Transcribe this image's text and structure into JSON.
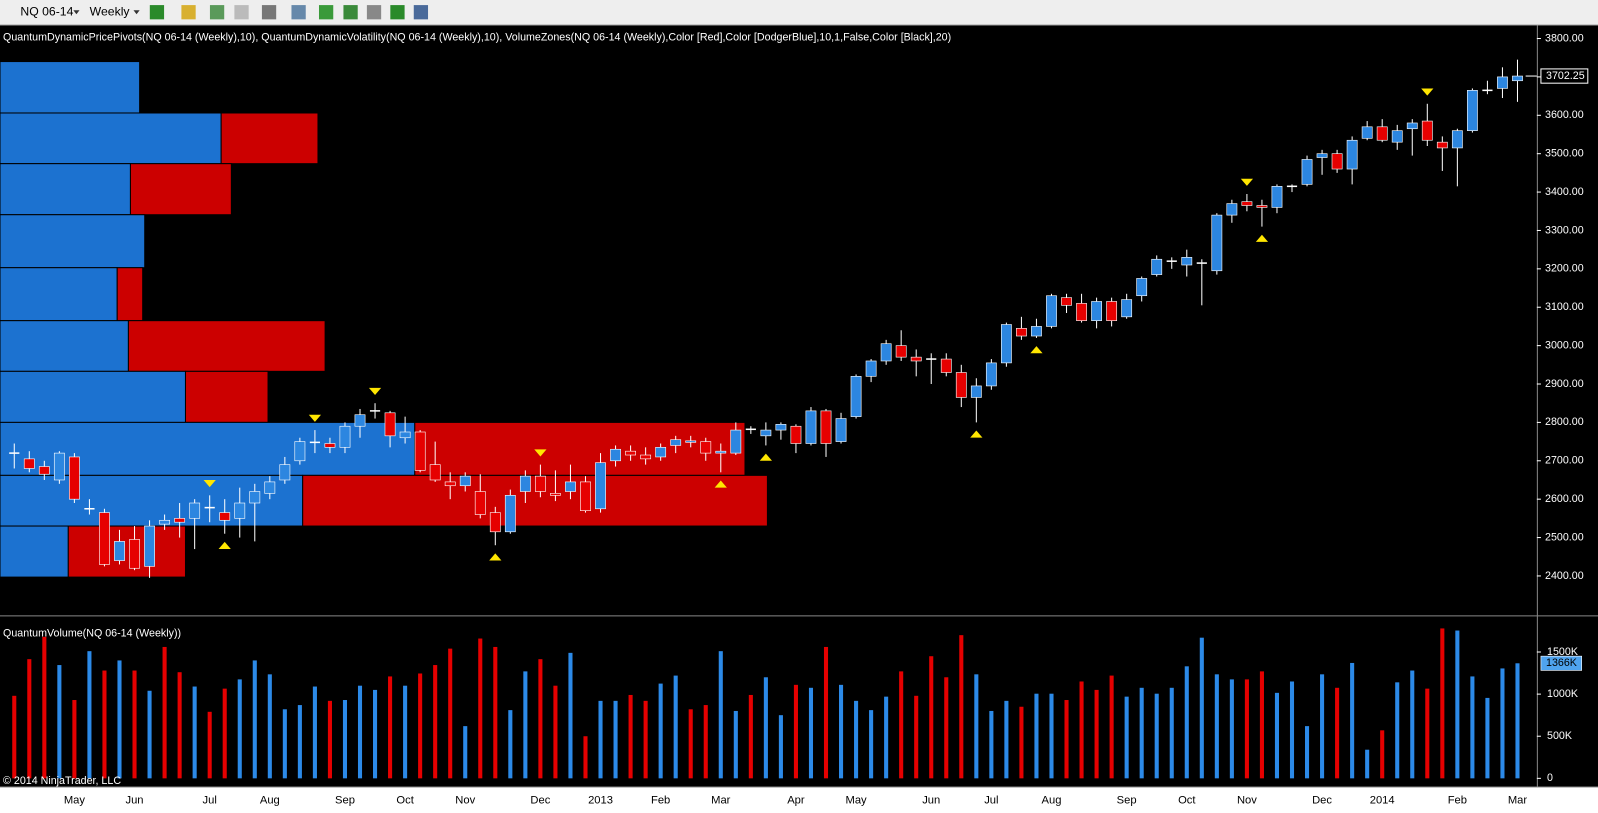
{
  "toolbar": {
    "instrument": "NQ 06-14",
    "interval": "Weekly"
  },
  "copyright": "© 2014 NinjaTrader, LLC",
  "chart_data": [
    {
      "type": "candlestick",
      "title": "QuantumDynamicPricePivots(NQ 06-14 (Weekly),10), QuantumDynamicVolatility(NQ 06-14 (Weekly),10), VolumeZones(NQ 06-14 (Weekly),Color [Red],Color [DodgerBlue],10,1,False,Color [Black],20)",
      "categories": [
        null,
        null,
        null,
        null,
        "May",
        null,
        null,
        null,
        "Jun",
        null,
        null,
        null,
        null,
        "Jul",
        null,
        null,
        null,
        "Aug",
        null,
        null,
        null,
        null,
        "Sep",
        null,
        null,
        null,
        "Oct",
        null,
        null,
        null,
        "Nov",
        null,
        null,
        null,
        null,
        "Dec",
        null,
        null,
        null,
        "2013",
        null,
        null,
        null,
        "Feb",
        null,
        null,
        null,
        "Mar",
        null,
        null,
        null,
        null,
        "Apr",
        null,
        null,
        null,
        "May",
        null,
        null,
        null,
        null,
        "Jun",
        null,
        null,
        null,
        "Jul",
        null,
        null,
        null,
        "Aug",
        null,
        null,
        null,
        null,
        "Sep",
        null,
        null,
        null,
        "Oct",
        null,
        null,
        null,
        "Nov",
        null,
        null,
        null,
        null,
        "Dec",
        null,
        null,
        null,
        "2014",
        null,
        null,
        null,
        null,
        "Feb",
        null,
        null,
        null,
        "Mar"
      ],
      "open": [
        2720,
        2705,
        2685,
        2650,
        2710,
        2575,
        2565,
        2440,
        2495,
        2425,
        2535,
        2550,
        2550,
        2578,
        2565,
        2550,
        2590,
        2615,
        2650,
        2700,
        2748,
        2745,
        2735,
        2790,
        2830,
        2825,
        2760,
        2775,
        2690,
        2645,
        2635,
        2620,
        2565,
        2515,
        2620,
        2660,
        2615,
        2620,
        2645,
        2575,
        2700,
        2725,
        2715,
        2710,
        2740,
        2748,
        2750,
        2720,
        2720,
        2782,
        2765,
        2780,
        2790,
        2745,
        2830,
        2750,
        2815,
        2920,
        2960,
        3000,
        2970,
        2965,
        2965,
        2930,
        2865,
        2895,
        2955,
        3045,
        3025,
        3050,
        3125,
        3110,
        3065,
        3115,
        3075,
        3130,
        3185,
        3220,
        3210,
        3215,
        3195,
        3340,
        3375,
        3365,
        3360,
        3415,
        3420,
        3490,
        3500,
        3460,
        3540,
        3570,
        3530,
        3565,
        3585,
        3530,
        3515,
        3560,
        3665,
        3670,
        3690
      ],
      "high": [
        2745,
        2725,
        2700,
        2725,
        2720,
        2600,
        2575,
        2520,
        2530,
        2545,
        2560,
        2590,
        2600,
        2610,
        2600,
        2630,
        2640,
        2660,
        2710,
        2760,
        2780,
        2760,
        2800,
        2835,
        2850,
        2830,
        2815,
        2780,
        2750,
        2670,
        2670,
        2665,
        2580,
        2625,
        2675,
        2690,
        2675,
        2690,
        2660,
        2720,
        2740,
        2740,
        2735,
        2745,
        2765,
        2765,
        2760,
        2745,
        2800,
        2790,
        2800,
        2800,
        2795,
        2840,
        2835,
        2825,
        2925,
        2965,
        3015,
        3040,
        2990,
        2980,
        2980,
        2950,
        2915,
        2965,
        3060,
        3075,
        3070,
        3135,
        3135,
        3135,
        3125,
        3125,
        3135,
        3180,
        3235,
        3230,
        3250,
        3225,
        3345,
        3380,
        3395,
        3380,
        3420,
        3420,
        3495,
        3510,
        3510,
        3545,
        3585,
        3590,
        3575,
        3590,
        3630,
        3545,
        3565,
        3670,
        3690,
        3725,
        3745
      ],
      "low": [
        2680,
        2670,
        2650,
        2640,
        2590,
        2560,
        2425,
        2430,
        2415,
        2395,
        2520,
        2500,
        2470,
        2540,
        2510,
        2500,
        2490,
        2600,
        2640,
        2690,
        2720,
        2720,
        2720,
        2760,
        2810,
        2735,
        2745,
        2670,
        2645,
        2600,
        2620,
        2550,
        2480,
        2510,
        2590,
        2605,
        2595,
        2600,
        2565,
        2565,
        2685,
        2700,
        2690,
        2700,
        2720,
        2735,
        2700,
        2670,
        2715,
        2770,
        2740,
        2755,
        2720,
        2740,
        2710,
        2745,
        2810,
        2905,
        2950,
        2960,
        2920,
        2900,
        2920,
        2840,
        2800,
        2885,
        2945,
        3015,
        3020,
        3045,
        3085,
        3060,
        3045,
        3050,
        3070,
        3115,
        3180,
        3200,
        3180,
        3105,
        3185,
        3320,
        3350,
        3310,
        3345,
        3400,
        3415,
        3445,
        3450,
        3420,
        3535,
        3530,
        3510,
        3495,
        3520,
        3455,
        3415,
        3555,
        3655,
        3645,
        3635
      ],
      "close": [
        2720,
        2680,
        2665,
        2720,
        2600,
        2575,
        2430,
        2490,
        2420,
        2530,
        2545,
        2540,
        2590,
        2578,
        2545,
        2590,
        2620,
        2645,
        2690,
        2750,
        2748,
        2735,
        2790,
        2820,
        2830,
        2765,
        2775,
        2675,
        2650,
        2635,
        2660,
        2560,
        2515,
        2610,
        2660,
        2620,
        2610,
        2645,
        2570,
        2695,
        2730,
        2715,
        2705,
        2735,
        2755,
        2752,
        2720,
        2725,
        2780,
        2782,
        2780,
        2795,
        2745,
        2830,
        2745,
        2810,
        2920,
        2960,
        3005,
        2970,
        2960,
        2965,
        2930,
        2865,
        2895,
        2955,
        3055,
        3025,
        3050,
        3130,
        3105,
        3065,
        3115,
        3065,
        3120,
        3175,
        3225,
        3220,
        3230,
        3215,
        3340,
        3370,
        3365,
        3360,
        3415,
        3415,
        3485,
        3500,
        3460,
        3535,
        3570,
        3535,
        3560,
        3580,
        3535,
        3515,
        3560,
        3665,
        3665,
        3700,
        3702.25
      ],
      "up_color": "#2c86e0",
      "down_color": "#e60000",
      "doji_color": "#ffffff",
      "ylim": [
        2300,
        3834
      ],
      "yticks": [
        {
          "value": 2400,
          "label": "2400.00"
        },
        {
          "value": 2500,
          "label": "2500.00"
        },
        {
          "value": 2600,
          "label": "2600.00"
        },
        {
          "value": 2700,
          "label": "2700.00"
        },
        {
          "value": 2800,
          "label": "2800.00"
        },
        {
          "value": 2900,
          "label": "2900.00"
        },
        {
          "value": 3000,
          "label": "3000.00"
        },
        {
          "value": 3100,
          "label": "3100.00"
        },
        {
          "value": 3200,
          "label": "3200.00"
        },
        {
          "value": 3300,
          "label": "3300.00"
        },
        {
          "value": 3400,
          "label": "3400.00"
        },
        {
          "value": 3500,
          "label": "3500.00"
        },
        {
          "value": 3600,
          "label": "3600.00"
        },
        {
          "value": 3700,
          "label": "3700.00"
        },
        {
          "value": 3800,
          "label": "3800.00"
        }
      ],
      "last_label": "3702.25",
      "zone_edges": [
        3740,
        3606,
        3474,
        3341,
        3203,
        3065,
        2933,
        2800,
        2662,
        2530,
        2397
      ],
      "zone_blue": [
        137,
        217,
        128,
        142,
        115,
        126,
        182,
        407,
        297,
        67
      ],
      "zone_red": [
        0,
        95,
        99,
        0,
        25,
        193,
        81,
        324,
        456,
        115
      ],
      "zone_blue_color": "#1c72d0",
      "zone_red_color": "#cc0000",
      "pivot_highs": [
        13,
        20,
        24,
        35,
        82,
        94
      ],
      "pivot_lows": [
        14,
        32,
        47,
        50,
        64,
        68,
        83
      ],
      "pivot_color": "#ffe600"
    },
    {
      "type": "bar",
      "title": "QuantumVolume(NQ 06-14 (Weekly))",
      "values": [
        980,
        1415,
        1680,
        1345,
        930,
        1510,
        1280,
        1400,
        1280,
        1040,
        1560,
        1260,
        1090,
        790,
        1065,
        1175,
        1400,
        1235,
        820,
        870,
        1090,
        920,
        930,
        1100,
        1050,
        1210,
        1100,
        1245,
        1345,
        1540,
        620,
        1660,
        1560,
        810,
        1270,
        1415,
        1100,
        1490,
        500,
        920,
        920,
        990,
        920,
        1125,
        1220,
        820,
        870,
        1510,
        800,
        990,
        1200,
        750,
        1110,
        1075,
        1560,
        1110,
        920,
        810,
        970,
        1270,
        980,
        1450,
        1200,
        1700,
        1235,
        800,
        920,
        850,
        1005,
        1005,
        930,
        1150,
        1050,
        1220,
        970,
        1075,
        1005,
        1075,
        1330,
        1670,
        1235,
        1175,
        1175,
        1270,
        1015,
        1150,
        620,
        1235,
        1075,
        1370,
        340,
        570,
        1140,
        1280,
        1065,
        1780,
        1755,
        1210,
        955,
        1305,
        1366
      ],
      "colors": [
        "#e60000",
        "#e60000",
        "#e60000",
        "#2c8ae8",
        "#e60000",
        "#2c8ae8",
        "#e60000",
        "#2c8ae8",
        "#e60000",
        "#2c8ae8",
        "#e60000",
        "#e60000",
        "#2c8ae8",
        "#e60000",
        "#e60000",
        "#2c8ae8",
        "#2c8ae8",
        "#2c8ae8",
        "#2c8ae8",
        "#2c8ae8",
        "#2c8ae8",
        "#e60000",
        "#2c8ae8",
        "#2c8ae8",
        "#2c8ae8",
        "#e60000",
        "#2c8ae8",
        "#e60000",
        "#e60000",
        "#e60000",
        "#2c8ae8",
        "#e60000",
        "#e60000",
        "#2c8ae8",
        "#2c8ae8",
        "#e60000",
        "#e60000",
        "#2c8ae8",
        "#e60000",
        "#2c8ae8",
        "#2c8ae8",
        "#e60000",
        "#e60000",
        "#2c8ae8",
        "#2c8ae8",
        "#e60000",
        "#e60000",
        "#2c8ae8",
        "#2c8ae8",
        "#e60000",
        "#2c8ae8",
        "#2c8ae8",
        "#e60000",
        "#2c8ae8",
        "#e60000",
        "#2c8ae8",
        "#2c8ae8",
        "#2c8ae8",
        "#2c8ae8",
        "#e60000",
        "#e60000",
        "#e60000",
        "#e60000",
        "#e60000",
        "#2c8ae8",
        "#2c8ae8",
        "#2c8ae8",
        "#e60000",
        "#2c8ae8",
        "#2c8ae8",
        "#e60000",
        "#e60000",
        "#e60000",
        "#e60000",
        "#2c8ae8",
        "#2c8ae8",
        "#2c8ae8",
        "#2c8ae8",
        "#2c8ae8",
        "#2c8ae8",
        "#2c8ae8",
        "#2c8ae8",
        "#e60000",
        "#e60000",
        "#2c8ae8",
        "#2c8ae8",
        "#2c8ae8",
        "#2c8ae8",
        "#e60000",
        "#2c8ae8",
        "#2c8ae8",
        "#e60000",
        "#2c8ae8",
        "#2c8ae8",
        "#e60000",
        "#e60000",
        "#2c8ae8",
        "#2c8ae8",
        "#2c8ae8",
        "#2c8ae8",
        "#2c8ae8"
      ],
      "ylim": [
        -97,
        1911
      ],
      "yticks": [
        0,
        {
          "value": 500,
          "label": "500K"
        },
        {
          "value": 1000,
          "label": "1000K"
        },
        {
          "value": 1500,
          "label": "1500K"
        }
      ],
      "last_label": "1366K"
    }
  ]
}
